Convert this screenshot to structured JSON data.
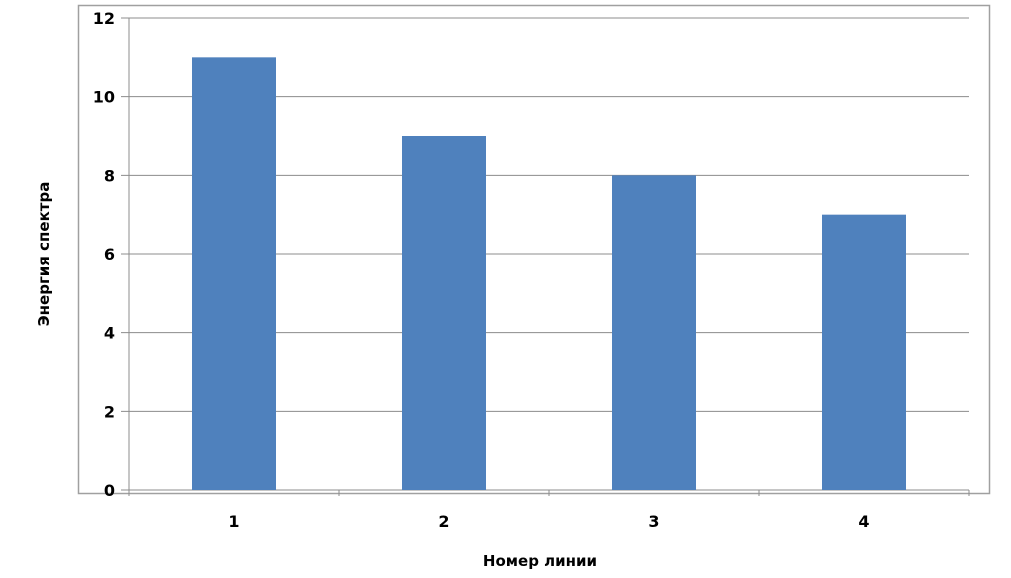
{
  "chart_data": {
    "type": "bar",
    "title": "",
    "xlabel": "Номер линии",
    "ylabel": "Энергия спектра",
    "categories": [
      "1",
      "2",
      "3",
      "4"
    ],
    "values": [
      11,
      9,
      8,
      7
    ],
    "ylim": [
      0,
      12
    ],
    "yticks": [
      "0",
      "2",
      "4",
      "6",
      "8",
      "10",
      "12"
    ],
    "grid": true,
    "legend": "none",
    "bar_color": "#4f81bd"
  }
}
